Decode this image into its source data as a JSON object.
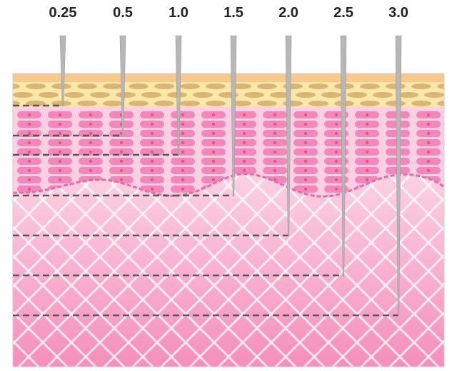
{
  "diagram": {
    "needle_labels": [
      "0.25",
      "0.5",
      "1.0",
      "1.5",
      "2.0",
      "2.5",
      "3.0"
    ],
    "depths_mm": [
      0.25,
      0.5,
      1.0,
      1.5,
      2.0,
      2.5,
      3.0
    ],
    "colors": {
      "stratum_corneum": "#fbe7a8",
      "stratum_corneum_top": "#f8c98c",
      "corneum_cells": "#d9b576",
      "epidermis": "#fbd0e3",
      "epidermis_cells": "#f487b9",
      "cell_nucleus": "#e0558f",
      "dermis_top": "#fde9f1",
      "dermis_bottom": "#f58fba",
      "dermis_border": "#ec6aa3",
      "needle": "#b7b7b7",
      "depth_line": "#555555",
      "label": "#222222"
    }
  }
}
